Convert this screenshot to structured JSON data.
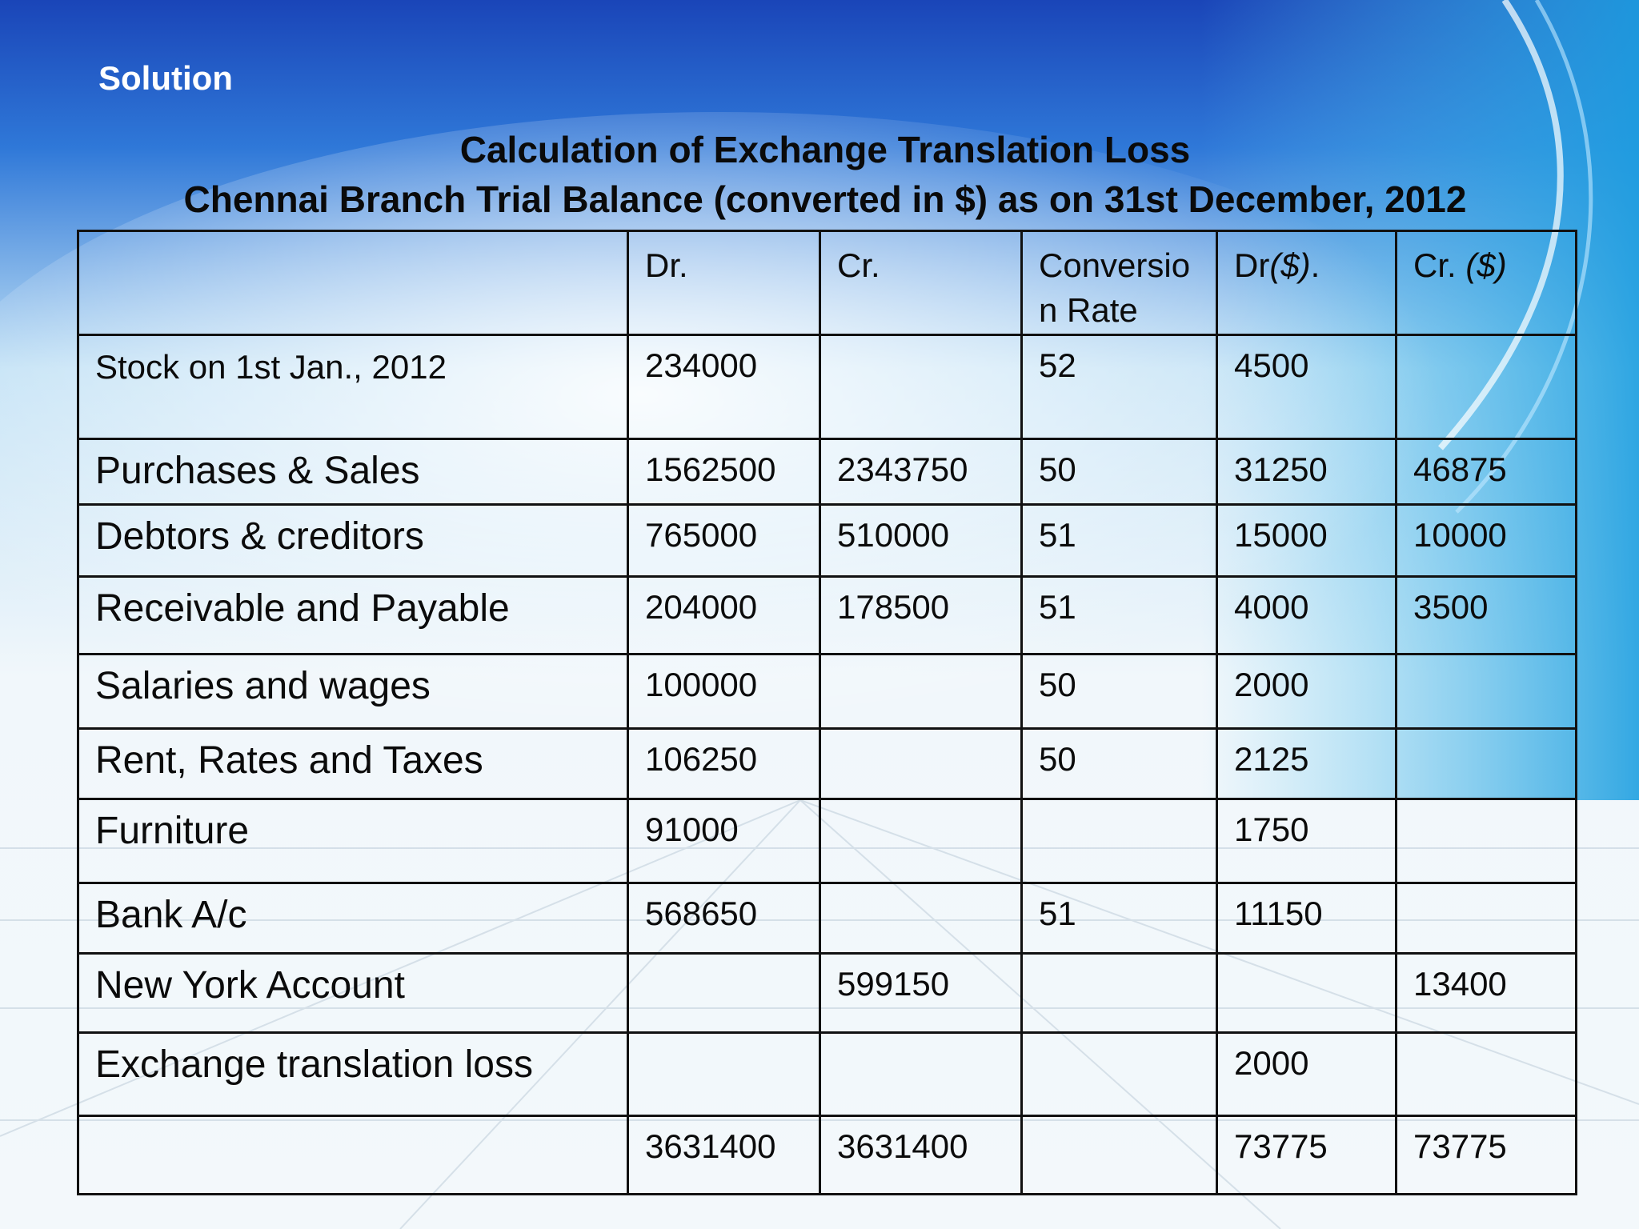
{
  "slide": {
    "heading": "Solution",
    "title_line1": "Calculation of Exchange Translation Loss",
    "title_line2": "Chennai Branch Trial Balance (converted in $) as on 31st December, 2012"
  },
  "colors": {
    "background_top": "#1b4fbf",
    "background_bottom": "#eef6fb",
    "text": "#0b0b0b",
    "heading_text": "#ffffff",
    "border": "#111111"
  },
  "table": {
    "headers": {
      "item": "",
      "dr": "Dr.",
      "cr": "Cr.",
      "rate": "Conversion Rate",
      "dr_usd_prefix": "Dr",
      "dr_usd_sym": "($)",
      "dr_usd_suffix": ".",
      "cr_usd_prefix": "Cr. ",
      "cr_usd_sym": "($)"
    },
    "rows": [
      {
        "item": "Stock on 1st Jan., 2012",
        "dr": "234000",
        "cr": "",
        "rate": "52",
        "dr_usd": "4500",
        "cr_usd": ""
      },
      {
        "item": "Purchases & Sales",
        "dr": "1562500",
        "cr": "2343750",
        "rate": "50",
        "dr_usd": "31250",
        "cr_usd": "46875"
      },
      {
        "item": "Debtors & creditors",
        "dr": "765000",
        "cr": "510000",
        "rate": "51",
        "dr_usd": "15000",
        "cr_usd": "10000"
      },
      {
        "item": "Receivable and Payable",
        "dr": "204000",
        "cr": "178500",
        "rate": "51",
        "dr_usd": "4000",
        "cr_usd": "3500"
      },
      {
        "item": "Salaries and wages",
        "dr": "100000",
        "cr": "",
        "rate": "50",
        "dr_usd": "2000",
        "cr_usd": ""
      },
      {
        "item": "Rent, Rates and Taxes",
        "dr": "106250",
        "cr": "",
        "rate": "50",
        "dr_usd": "2125",
        "cr_usd": ""
      },
      {
        "item": "Furniture",
        "dr": "91000",
        "cr": "",
        "rate": "",
        "dr_usd": "1750",
        "cr_usd": ""
      },
      {
        "item": "Bank A/c",
        "dr": "568650",
        "cr": "",
        "rate": "51",
        "dr_usd": "11150",
        "cr_usd": ""
      },
      {
        "item": "New York Account",
        "dr": "",
        "cr": "599150",
        "rate": "",
        "dr_usd": "",
        "cr_usd": "13400"
      },
      {
        "item": "Exchange translation loss",
        "dr": "",
        "cr": "",
        "rate": "",
        "dr_usd": "2000",
        "cr_usd": ""
      },
      {
        "item": "",
        "dr": "3631400",
        "cr": "3631400",
        "rate": "",
        "dr_usd": "73775",
        "cr_usd": "73775"
      }
    ]
  }
}
